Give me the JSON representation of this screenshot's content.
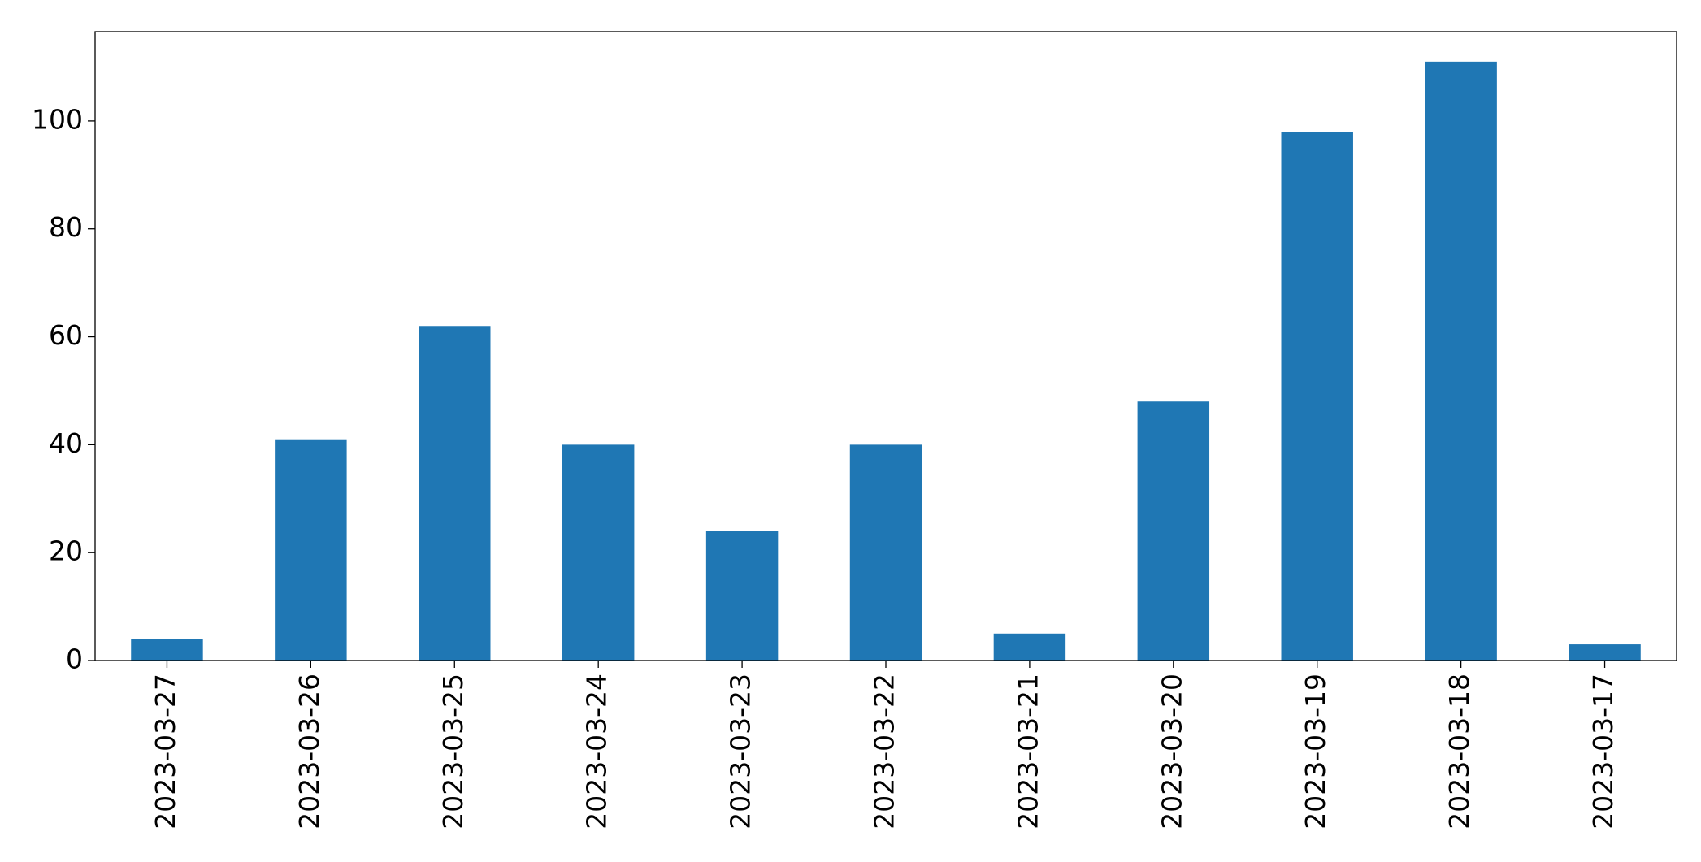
{
  "chart_data": {
    "type": "bar",
    "categories": [
      "2023-03-27",
      "2023-03-26",
      "2023-03-25",
      "2023-03-24",
      "2023-03-23",
      "2023-03-22",
      "2023-03-21",
      "2023-03-20",
      "2023-03-19",
      "2023-03-18",
      "2023-03-17"
    ],
    "values": [
      4,
      41,
      62,
      40,
      24,
      40,
      5,
      48,
      98,
      111,
      3
    ],
    "color": "#1f77b4",
    "ylim": [
      0,
      116.55
    ],
    "yticks": [
      0,
      20,
      40,
      60,
      80,
      100
    ],
    "grid": false
  }
}
